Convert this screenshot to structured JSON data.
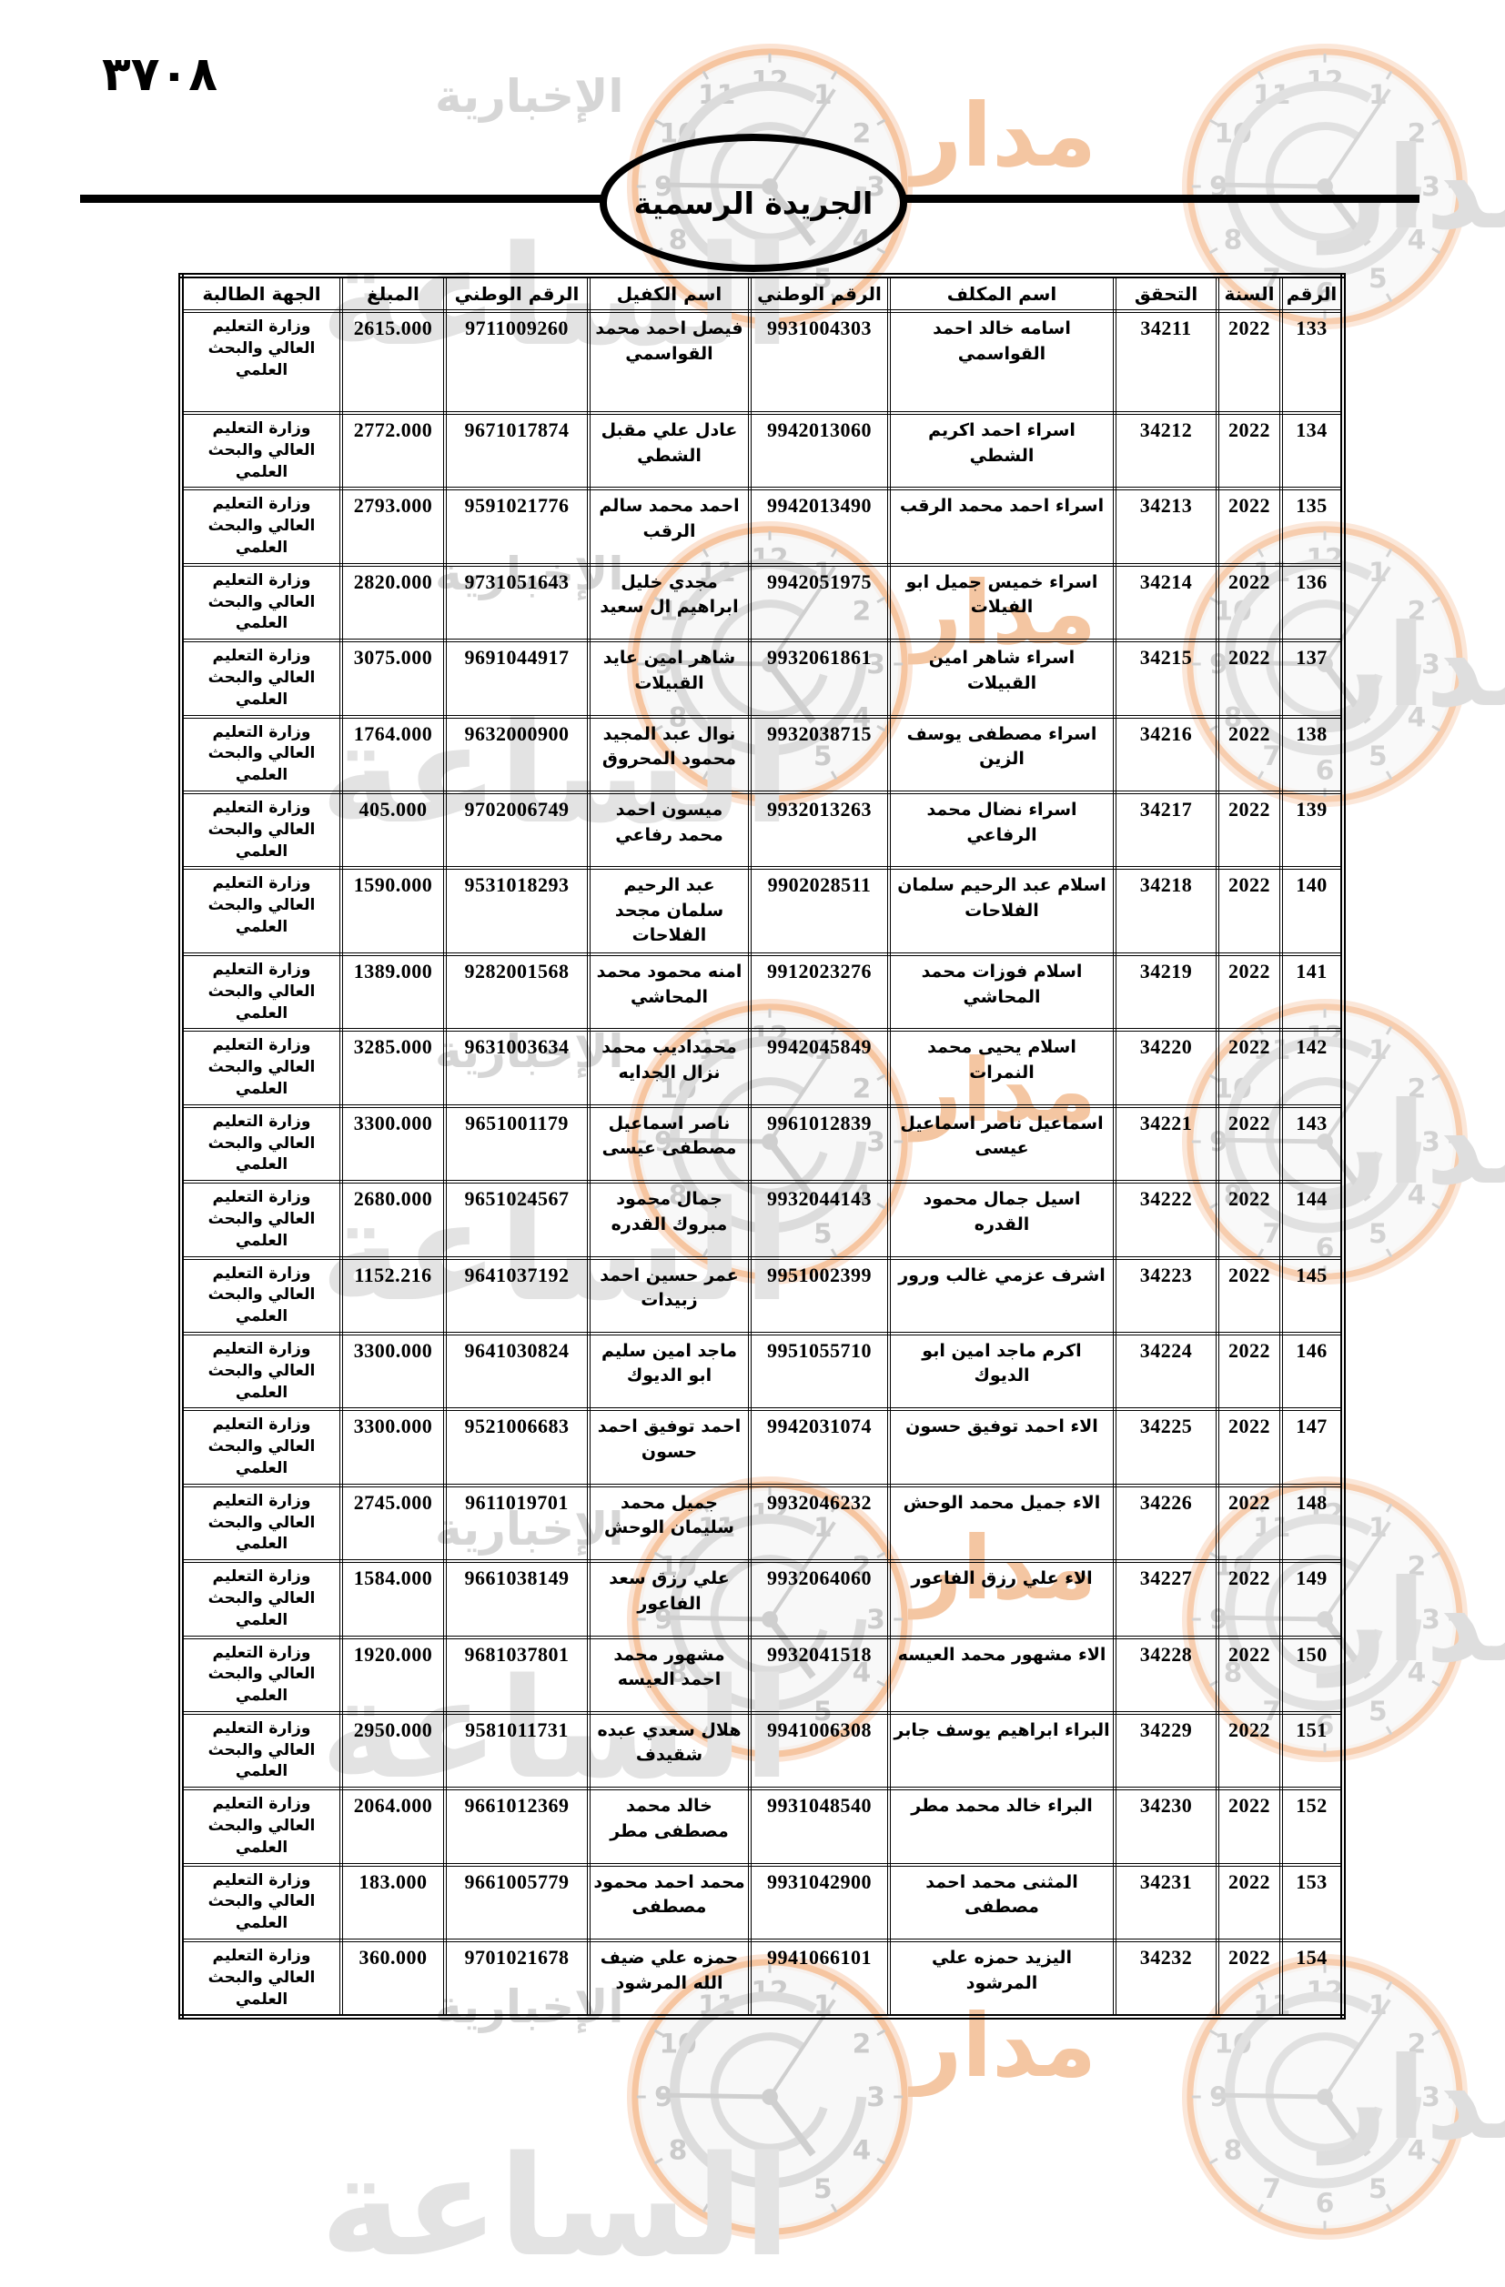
{
  "page": {
    "page_number": "٣٧٠٨",
    "header_title": "الجريدة الرسمية"
  },
  "watermark": {
    "brand_word_right": "مدار",
    "brand_word_big": "الساعة",
    "brand_word_left": "الإخبارية",
    "clock_numbers": [
      "12",
      "1",
      "2",
      "3",
      "4",
      "5",
      "6",
      "7",
      "8",
      "9",
      "10",
      "11"
    ],
    "ring_color": "#f6c5a0",
    "glow_color": "#fbe3d3",
    "gray_color": "#cbcbcb"
  },
  "table": {
    "headers": [
      "الرقم",
      "السنة",
      "التحقق",
      "اسم المكلف",
      "الرقم الوطني",
      "اسم الكفيل",
      "الرقم الوطني",
      "المبلغ",
      "الجهة الطالبة"
    ],
    "rows": [
      {
        "raqm": "133",
        "sana": "2022",
        "tahaqq": "34211",
        "mukallaf": "اسامه خالد احمد القواسمي",
        "watani_mukallaf": "9931004303",
        "kafeel": "فيصل احمد محمد القواسمي",
        "watani_kafeel": "9711009260",
        "mablagh": "2615.000",
        "jiha": "وزارة التعليم العالي والبحث العلمي"
      },
      {
        "raqm": "134",
        "sana": "2022",
        "tahaqq": "34212",
        "mukallaf": "اسراء احمد اكريم الشطي",
        "watani_mukallaf": "9942013060",
        "kafeel": "عادل علي مقبل الشطي",
        "watani_kafeel": "9671017874",
        "mablagh": "2772.000",
        "jiha": "وزارة التعليم العالي والبحث العلمي"
      },
      {
        "raqm": "135",
        "sana": "2022",
        "tahaqq": "34213",
        "mukallaf": "اسراء احمد محمد الرقب",
        "watani_mukallaf": "9942013490",
        "kafeel": "احمد محمد سالم الرقب",
        "watani_kafeel": "9591021776",
        "mablagh": "2793.000",
        "jiha": "وزارة التعليم العالي والبحث العلمي"
      },
      {
        "raqm": "136",
        "sana": "2022",
        "tahaqq": "34214",
        "mukallaf": "اسراء خميس جميل ابو الفيلات",
        "watani_mukallaf": "9942051975",
        "kafeel": "مجدي خليل ابراهيم ال سعيد",
        "watani_kafeel": "9731051643",
        "mablagh": "2820.000",
        "jiha": "وزارة التعليم العالي والبحث العلمي"
      },
      {
        "raqm": "137",
        "sana": "2022",
        "tahaqq": "34215",
        "mukallaf": "اسراء شاهر امين القبيلات",
        "watani_mukallaf": "9932061861",
        "kafeel": "شاهر امين عايد القبيلات",
        "watani_kafeel": "9691044917",
        "mablagh": "3075.000",
        "jiha": "وزارة التعليم العالي والبحث العلمي"
      },
      {
        "raqm": "138",
        "sana": "2022",
        "tahaqq": "34216",
        "mukallaf": "اسراء مصطفى يوسف الزين",
        "watani_mukallaf": "9932038715",
        "kafeel": "نوال عبد المجيد محمود المحروق",
        "watani_kafeel": "9632000900",
        "mablagh": "1764.000",
        "jiha": "وزارة التعليم العالي والبحث العلمي"
      },
      {
        "raqm": "139",
        "sana": "2022",
        "tahaqq": "34217",
        "mukallaf": "اسراء نضال محمد الرفاعي",
        "watani_mukallaf": "9932013263",
        "kafeel": "ميسون احمد محمد رفاعي",
        "watani_kafeel": "9702006749",
        "mablagh": "405.000",
        "jiha": "وزارة التعليم العالي والبحث العلمي"
      },
      {
        "raqm": "140",
        "sana": "2022",
        "tahaqq": "34218",
        "mukallaf": "اسلام عبد الرحيم سلمان الفلاحات",
        "watani_mukallaf": "9902028511",
        "kafeel": "عبد الرحيم سلمان مجحد الفلاحات",
        "watani_kafeel": "9531018293",
        "mablagh": "1590.000",
        "jiha": "وزارة التعليم العالي والبحث العلمي"
      },
      {
        "raqm": "141",
        "sana": "2022",
        "tahaqq": "34219",
        "mukallaf": "اسلام فوزات محمد المحاشي",
        "watani_mukallaf": "9912023276",
        "kafeel": "امنه محمود محمد المحاشي",
        "watani_kafeel": "9282001568",
        "mablagh": "1389.000",
        "jiha": "وزارة التعليم العالي والبحث العلمي"
      },
      {
        "raqm": "142",
        "sana": "2022",
        "tahaqq": "34220",
        "mukallaf": "اسلام يحيى محمد النمرات",
        "watani_mukallaf": "9942045849",
        "kafeel": "محمداديب محمد نزال الجدايه",
        "watani_kafeel": "9631003634",
        "mablagh": "3285.000",
        "jiha": "وزارة التعليم العالي والبحث العلمي"
      },
      {
        "raqm": "143",
        "sana": "2022",
        "tahaqq": "34221",
        "mukallaf": "اسماعيل ناصر اسماعيل عيسى",
        "watani_mukallaf": "9961012839",
        "kafeel": "ناصر اسماعيل مصطفى عيسى",
        "watani_kafeel": "9651001179",
        "mablagh": "3300.000",
        "jiha": "وزارة التعليم العالي والبحث العلمي"
      },
      {
        "raqm": "144",
        "sana": "2022",
        "tahaqq": "34222",
        "mukallaf": "اسيل جمال محمود القدره",
        "watani_mukallaf": "9932044143",
        "kafeel": "جمال محمود مبروك القدره",
        "watani_kafeel": "9651024567",
        "mablagh": "2680.000",
        "jiha": "وزارة التعليم العالي والبحث العلمي"
      },
      {
        "raqm": "145",
        "sana": "2022",
        "tahaqq": "34223",
        "mukallaf": "اشرف عزمي غالب ورور",
        "watani_mukallaf": "9951002399",
        "kafeel": "عمر حسين احمد زبيدات",
        "watani_kafeel": "9641037192",
        "mablagh": "1152.216",
        "jiha": "وزارة التعليم العالي والبحث العلمي"
      },
      {
        "raqm": "146",
        "sana": "2022",
        "tahaqq": "34224",
        "mukallaf": "اكرم ماجد امين ابو الديوك",
        "watani_mukallaf": "9951055710",
        "kafeel": "ماجد امين سليم ابو الديوك",
        "watani_kafeel": "9641030824",
        "mablagh": "3300.000",
        "jiha": "وزارة التعليم العالي والبحث العلمي"
      },
      {
        "raqm": "147",
        "sana": "2022",
        "tahaqq": "34225",
        "mukallaf": "الاء احمد توفيق حسون",
        "watani_mukallaf": "9942031074",
        "kafeel": "احمد توفيق احمد حسون",
        "watani_kafeel": "9521006683",
        "mablagh": "3300.000",
        "jiha": "وزارة التعليم العالي والبحث العلمي"
      },
      {
        "raqm": "148",
        "sana": "2022",
        "tahaqq": "34226",
        "mukallaf": "الاء جميل محمد الوحش",
        "watani_mukallaf": "9932046232",
        "kafeel": "جميل محمد سليمان الوحش",
        "watani_kafeel": "9611019701",
        "mablagh": "2745.000",
        "jiha": "وزارة التعليم العالي والبحث العلمي"
      },
      {
        "raqm": "149",
        "sana": "2022",
        "tahaqq": "34227",
        "mukallaf": "الاء علي رزق الفاعور",
        "watani_mukallaf": "9932064060",
        "kafeel": "علي رزق سعد الفاعور",
        "watani_kafeel": "9661038149",
        "mablagh": "1584.000",
        "jiha": "وزارة التعليم العالي والبحث العلمي"
      },
      {
        "raqm": "150",
        "sana": "2022",
        "tahaqq": "34228",
        "mukallaf": "الاء مشهور محمد العيسه",
        "watani_mukallaf": "9932041518",
        "kafeel": "مشهور محمد احمد العيسه",
        "watani_kafeel": "9681037801",
        "mablagh": "1920.000",
        "jiha": "وزارة التعليم العالي والبحث العلمي"
      },
      {
        "raqm": "151",
        "sana": "2022",
        "tahaqq": "34229",
        "mukallaf": "البراء ابراهيم يوسف جابر",
        "watani_mukallaf": "9941006308",
        "kafeel": "هلال سعدي عبده شقيدف",
        "watani_kafeel": "9581011731",
        "mablagh": "2950.000",
        "jiha": "وزارة التعليم العالي والبحث العلمي"
      },
      {
        "raqm": "152",
        "sana": "2022",
        "tahaqq": "34230",
        "mukallaf": "البراء خالد محمد مطر",
        "watani_mukallaf": "9931048540",
        "kafeel": "خالد محمد مصطفى مطر",
        "watani_kafeel": "9661012369",
        "mablagh": "2064.000",
        "jiha": "وزارة التعليم العالي والبحث العلمي"
      },
      {
        "raqm": "153",
        "sana": "2022",
        "tahaqq": "34231",
        "mukallaf": "المثنى محمد احمد مصطفى",
        "watani_mukallaf": "9931042900",
        "kafeel": "محمد احمد محمود مصطفى",
        "watani_kafeel": "9661005779",
        "mablagh": "183.000",
        "jiha": "وزارة التعليم العالي والبحث العلمي"
      },
      {
        "raqm": "154",
        "sana": "2022",
        "tahaqq": "34232",
        "mukallaf": "اليزيد حمزه علي المرشود",
        "watani_mukallaf": "9941066101",
        "kafeel": "حمزه علي ضيف الله المرشود",
        "watani_kafeel": "9701021678",
        "mablagh": "360.000",
        "jiha": "وزارة التعليم العالي والبحث العلمي"
      }
    ]
  }
}
